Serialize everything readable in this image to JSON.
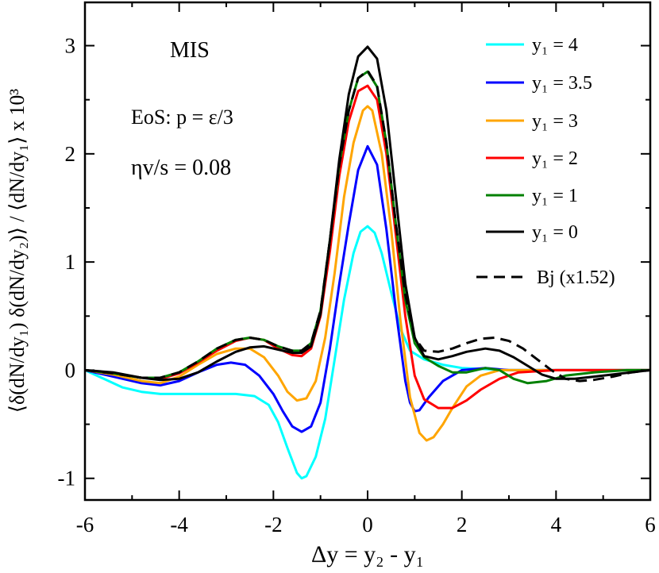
{
  "chart_data": {
    "type": "line",
    "xlabel": "Δy = y₂ - y₁",
    "ylabel": "⟨δ(dN/dy₁) δ(dN/dy₂)⟩ / ⟨dN/dy₁⟩  x 10³",
    "xlim": [
      -6,
      6
    ],
    "ylim": [
      -1.2,
      3.4
    ],
    "x_ticks": [
      "-6",
      "-4",
      "-2",
      "0",
      "2",
      "4",
      "6"
    ],
    "y_ticks": [
      "-1",
      "0",
      "1",
      "2",
      "3"
    ],
    "grid": false,
    "legend_position": "top-right",
    "annotations": [
      "MIS",
      "EoS: p = ε/3",
      "ηv/s = 0.08"
    ],
    "series": [
      {
        "name": "y₁ = 4",
        "color": "#00ffff",
        "dash": "solid",
        "points": [
          [
            -6,
            0
          ],
          [
            -5.6,
            -0.08
          ],
          [
            -5.2,
            -0.16
          ],
          [
            -4.8,
            -0.2
          ],
          [
            -4.4,
            -0.22
          ],
          [
            -4,
            -0.22
          ],
          [
            -3.6,
            -0.22
          ],
          [
            -3.2,
            -0.22
          ],
          [
            -2.8,
            -0.22
          ],
          [
            -2.4,
            -0.24
          ],
          [
            -2.1,
            -0.32
          ],
          [
            -1.9,
            -0.48
          ],
          [
            -1.7,
            -0.72
          ],
          [
            -1.5,
            -0.95
          ],
          [
            -1.4,
            -1.0
          ],
          [
            -1.3,
            -0.98
          ],
          [
            -1.1,
            -0.8
          ],
          [
            -0.9,
            -0.45
          ],
          [
            -0.7,
            0.1
          ],
          [
            -0.5,
            0.65
          ],
          [
            -0.3,
            1.08
          ],
          [
            -0.15,
            1.28
          ],
          [
            0,
            1.33
          ],
          [
            0.15,
            1.27
          ],
          [
            0.3,
            1.08
          ],
          [
            0.5,
            0.72
          ],
          [
            0.7,
            0.38
          ],
          [
            0.9,
            0.18
          ],
          [
            1.2,
            0.1
          ],
          [
            1.6,
            0.05
          ],
          [
            2,
            0.02
          ],
          [
            3,
            0
          ],
          [
            6,
            0
          ]
        ]
      },
      {
        "name": "y₁ = 3.5",
        "color": "#0000ff",
        "dash": "solid",
        "points": [
          [
            -6,
            0
          ],
          [
            -5.4,
            -0.06
          ],
          [
            -4.8,
            -0.12
          ],
          [
            -4.4,
            -0.14
          ],
          [
            -4,
            -0.1
          ],
          [
            -3.6,
            -0.02
          ],
          [
            -3.2,
            0.05
          ],
          [
            -2.9,
            0.07
          ],
          [
            -2.6,
            0.05
          ],
          [
            -2.3,
            -0.05
          ],
          [
            -2,
            -0.22
          ],
          [
            -1.8,
            -0.38
          ],
          [
            -1.6,
            -0.52
          ],
          [
            -1.4,
            -0.57
          ],
          [
            -1.2,
            -0.52
          ],
          [
            -1.0,
            -0.3
          ],
          [
            -0.8,
            0.2
          ],
          [
            -0.6,
            0.8
          ],
          [
            -0.4,
            1.35
          ],
          [
            -0.2,
            1.85
          ],
          [
            0,
            2.07
          ],
          [
            0.2,
            1.9
          ],
          [
            0.4,
            1.3
          ],
          [
            0.6,
            0.55
          ],
          [
            0.8,
            -0.1
          ],
          [
            0.9,
            -0.3
          ],
          [
            1.0,
            -0.38
          ],
          [
            1.1,
            -0.37
          ],
          [
            1.3,
            -0.25
          ],
          [
            1.6,
            -0.1
          ],
          [
            2,
            0
          ],
          [
            2.5,
            0.02
          ],
          [
            3,
            0
          ],
          [
            4,
            0
          ],
          [
            6,
            0
          ]
        ]
      },
      {
        "name": "y₁ = 3",
        "color": "#ffa500",
        "dash": "solid",
        "points": [
          [
            -6,
            0
          ],
          [
            -5.4,
            -0.04
          ],
          [
            -4.8,
            -0.1
          ],
          [
            -4.4,
            -0.12
          ],
          [
            -4,
            -0.06
          ],
          [
            -3.6,
            0.05
          ],
          [
            -3.2,
            0.15
          ],
          [
            -2.8,
            0.2
          ],
          [
            -2.5,
            0.2
          ],
          [
            -2.2,
            0.12
          ],
          [
            -1.9,
            -0.05
          ],
          [
            -1.7,
            -0.2
          ],
          [
            -1.5,
            -0.28
          ],
          [
            -1.3,
            -0.26
          ],
          [
            -1.1,
            -0.1
          ],
          [
            -0.9,
            0.3
          ],
          [
            -0.7,
            0.9
          ],
          [
            -0.5,
            1.6
          ],
          [
            -0.3,
            2.1
          ],
          [
            -0.1,
            2.4
          ],
          [
            0,
            2.44
          ],
          [
            0.1,
            2.4
          ],
          [
            0.3,
            2.0
          ],
          [
            0.5,
            1.3
          ],
          [
            0.7,
            0.45
          ],
          [
            0.9,
            -0.25
          ],
          [
            1.1,
            -0.58
          ],
          [
            1.25,
            -0.65
          ],
          [
            1.4,
            -0.62
          ],
          [
            1.6,
            -0.5
          ],
          [
            1.8,
            -0.35
          ],
          [
            2.1,
            -0.15
          ],
          [
            2.4,
            -0.05
          ],
          [
            2.8,
            0
          ],
          [
            3.5,
            0
          ],
          [
            6,
            0
          ]
        ]
      },
      {
        "name": "y₁ = 2",
        "color": "#ff0000",
        "dash": "solid",
        "points": [
          [
            -6,
            0
          ],
          [
            -5.4,
            -0.03
          ],
          [
            -4.8,
            -0.07
          ],
          [
            -4.4,
            -0.08
          ],
          [
            -4,
            -0.03
          ],
          [
            -3.6,
            0.07
          ],
          [
            -3.2,
            0.18
          ],
          [
            -2.8,
            0.27
          ],
          [
            -2.5,
            0.3
          ],
          [
            -2.2,
            0.28
          ],
          [
            -1.9,
            0.2
          ],
          [
            -1.6,
            0.14
          ],
          [
            -1.4,
            0.13
          ],
          [
            -1.2,
            0.2
          ],
          [
            -1.0,
            0.5
          ],
          [
            -0.8,
            1.1
          ],
          [
            -0.6,
            1.8
          ],
          [
            -0.4,
            2.3
          ],
          [
            -0.2,
            2.58
          ],
          [
            0,
            2.63
          ],
          [
            0.2,
            2.5
          ],
          [
            0.4,
            2.0
          ],
          [
            0.6,
            1.25
          ],
          [
            0.8,
            0.5
          ],
          [
            1.0,
            -0.05
          ],
          [
            1.2,
            -0.27
          ],
          [
            1.5,
            -0.35
          ],
          [
            1.8,
            -0.35
          ],
          [
            2.1,
            -0.28
          ],
          [
            2.4,
            -0.18
          ],
          [
            2.8,
            -0.08
          ],
          [
            3.2,
            -0.02
          ],
          [
            4,
            0
          ],
          [
            6,
            0
          ]
        ]
      },
      {
        "name": "y₁ = 1",
        "color": "#008000",
        "dash": "solid",
        "points": [
          [
            -6,
            0
          ],
          [
            -5.4,
            -0.03
          ],
          [
            -4.8,
            -0.07
          ],
          [
            -4.4,
            -0.07
          ],
          [
            -4,
            -0.02
          ],
          [
            -3.6,
            0.08
          ],
          [
            -3.2,
            0.2
          ],
          [
            -2.8,
            0.28
          ],
          [
            -2.5,
            0.3
          ],
          [
            -2.2,
            0.28
          ],
          [
            -1.9,
            0.22
          ],
          [
            -1.6,
            0.18
          ],
          [
            -1.4,
            0.18
          ],
          [
            -1.2,
            0.25
          ],
          [
            -1.0,
            0.55
          ],
          [
            -0.8,
            1.2
          ],
          [
            -0.6,
            1.9
          ],
          [
            -0.4,
            2.4
          ],
          [
            -0.2,
            2.7
          ],
          [
            0,
            2.76
          ],
          [
            0.2,
            2.62
          ],
          [
            0.4,
            2.1
          ],
          [
            0.6,
            1.35
          ],
          [
            0.8,
            0.65
          ],
          [
            1.0,
            0.25
          ],
          [
            1.2,
            0.12
          ],
          [
            1.5,
            0.04
          ],
          [
            1.8,
            -0.02
          ],
          [
            2.1,
            -0.02
          ],
          [
            2.5,
            0.02
          ],
          [
            2.8,
            0.0
          ],
          [
            3.1,
            -0.08
          ],
          [
            3.4,
            -0.12
          ],
          [
            3.8,
            -0.1
          ],
          [
            4.2,
            -0.05
          ],
          [
            4.8,
            -0.02
          ],
          [
            5.5,
            0
          ],
          [
            6,
            0
          ]
        ]
      },
      {
        "name": "y₁ = 0",
        "color": "#000000",
        "dash": "solid",
        "points": [
          [
            -6,
            0
          ],
          [
            -5.4,
            -0.02
          ],
          [
            -4.8,
            -0.07
          ],
          [
            -4.4,
            -0.09
          ],
          [
            -4,
            -0.08
          ],
          [
            -3.6,
            -0.02
          ],
          [
            -3.2,
            0.08
          ],
          [
            -2.8,
            0.17
          ],
          [
            -2.5,
            0.21
          ],
          [
            -2.2,
            0.22
          ],
          [
            -1.9,
            0.19
          ],
          [
            -1.6,
            0.16
          ],
          [
            -1.4,
            0.16
          ],
          [
            -1.2,
            0.22
          ],
          [
            -1.0,
            0.52
          ],
          [
            -0.8,
            1.2
          ],
          [
            -0.6,
            1.95
          ],
          [
            -0.4,
            2.55
          ],
          [
            -0.2,
            2.9
          ],
          [
            0,
            2.99
          ],
          [
            0.2,
            2.88
          ],
          [
            0.4,
            2.4
          ],
          [
            0.6,
            1.6
          ],
          [
            0.8,
            0.8
          ],
          [
            1.0,
            0.3
          ],
          [
            1.2,
            0.13
          ],
          [
            1.5,
            0.1
          ],
          [
            1.8,
            0.13
          ],
          [
            2.1,
            0.17
          ],
          [
            2.5,
            0.2
          ],
          [
            2.8,
            0.18
          ],
          [
            3.1,
            0.12
          ],
          [
            3.4,
            0.04
          ],
          [
            3.7,
            -0.04
          ],
          [
            4.0,
            -0.08
          ],
          [
            4.4,
            -0.08
          ],
          [
            4.8,
            -0.06
          ],
          [
            5.4,
            -0.03
          ],
          [
            6,
            0
          ]
        ]
      },
      {
        "name": "Bj (x1.52)",
        "color": "#000000",
        "dash": "dashed",
        "points": [
          [
            -6,
            0
          ],
          [
            -5.4,
            -0.03
          ],
          [
            -4.8,
            -0.07
          ],
          [
            -4.4,
            -0.07
          ],
          [
            -4,
            -0.02
          ],
          [
            -3.6,
            0.08
          ],
          [
            -3.2,
            0.2
          ],
          [
            -2.8,
            0.28
          ],
          [
            -2.5,
            0.3
          ],
          [
            -2.2,
            0.28
          ],
          [
            -1.9,
            0.22
          ],
          [
            -1.6,
            0.18
          ],
          [
            -1.4,
            0.18
          ],
          [
            -1.2,
            0.25
          ],
          [
            -1.0,
            0.55
          ],
          [
            -0.8,
            1.2
          ],
          [
            -0.6,
            1.9
          ],
          [
            -0.4,
            2.4
          ],
          [
            -0.2,
            2.7
          ],
          [
            0,
            2.77
          ],
          [
            0.2,
            2.63
          ],
          [
            0.4,
            2.1
          ],
          [
            0.6,
            1.35
          ],
          [
            0.8,
            0.7
          ],
          [
            1.0,
            0.3
          ],
          [
            1.2,
            0.18
          ],
          [
            1.5,
            0.17
          ],
          [
            1.8,
            0.2
          ],
          [
            2.1,
            0.25
          ],
          [
            2.4,
            0.29
          ],
          [
            2.7,
            0.3
          ],
          [
            3.0,
            0.27
          ],
          [
            3.3,
            0.2
          ],
          [
            3.6,
            0.1
          ],
          [
            3.9,
            0.0
          ],
          [
            4.2,
            -0.08
          ],
          [
            4.5,
            -0.1
          ],
          [
            4.8,
            -0.09
          ],
          [
            5.2,
            -0.06
          ],
          [
            5.6,
            -0.02
          ],
          [
            6,
            0
          ]
        ]
      }
    ]
  }
}
